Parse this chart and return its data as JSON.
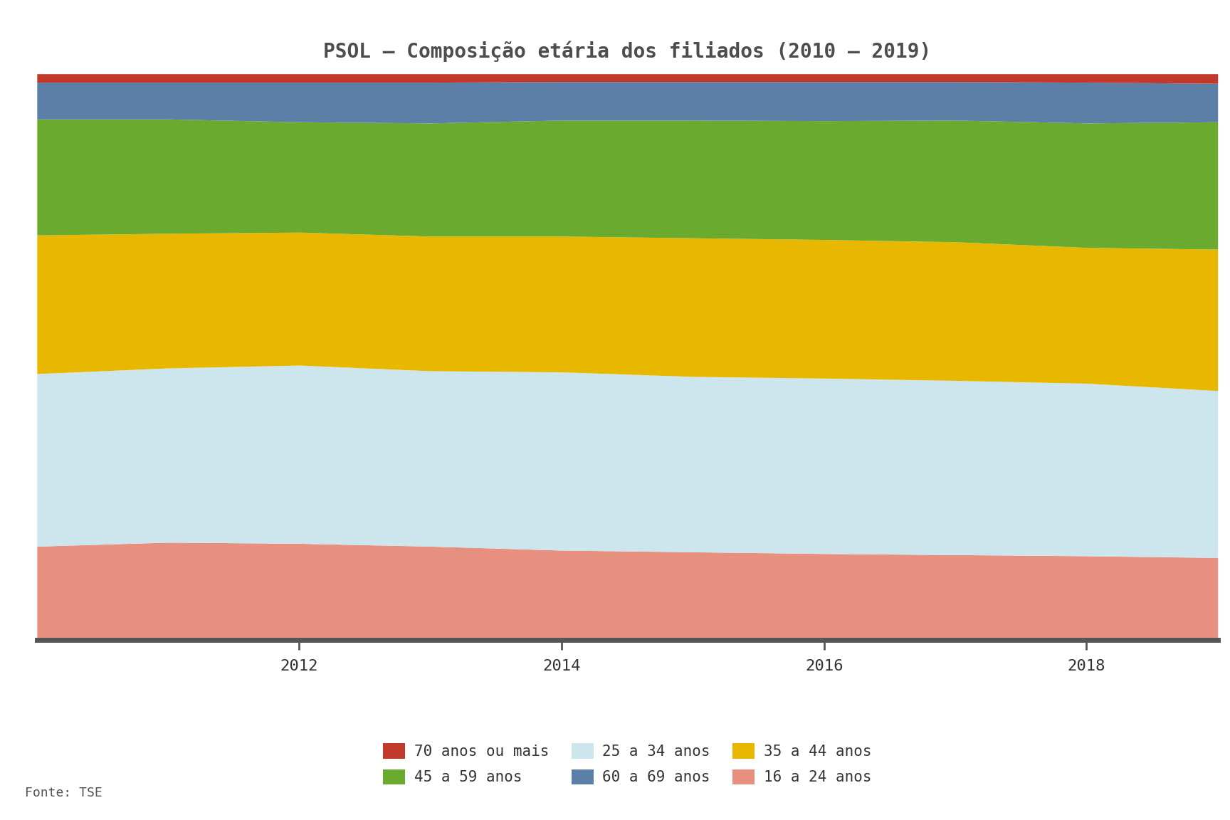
{
  "title": "PSOL – Composição etária dos filiados (2010 – 2019)",
  "fonte": "Fonte: TSE",
  "years": [
    2010,
    2011,
    2012,
    2013,
    2014,
    2015,
    2016,
    2017,
    2018,
    2019
  ],
  "series": {
    "16 a 24 anos": [
      16.5,
      17.2,
      17.0,
      16.5,
      15.8,
      15.5,
      15.2,
      15.0,
      14.8,
      14.5
    ],
    "25 a 34 anos": [
      30.5,
      30.8,
      31.5,
      31.0,
      31.5,
      31.0,
      31.0,
      30.8,
      30.5,
      29.5
    ],
    "35 a 44 anos": [
      24.5,
      23.8,
      23.5,
      23.8,
      24.0,
      24.5,
      24.5,
      24.5,
      24.0,
      25.0
    ],
    "45 a 59 anos": [
      20.5,
      20.2,
      19.5,
      20.0,
      20.5,
      20.8,
      21.0,
      21.5,
      22.0,
      22.5
    ],
    "60 a 69 anos": [
      6.5,
      6.5,
      7.0,
      7.2,
      6.8,
      6.8,
      6.9,
      6.8,
      7.2,
      6.8
    ],
    "70 anos ou mais": [
      1.5,
      1.5,
      1.5,
      1.5,
      1.4,
      1.4,
      1.4,
      1.4,
      1.5,
      1.7
    ]
  },
  "colors": {
    "70 anos ou mais": "#c0392b",
    "60 a 69 anos": "#5b7fa6",
    "45 a 59 anos": "#6aaa2e",
    "35 a 44 anos": "#e8b800",
    "25 a 34 anos": "#cde5ec",
    "16 a 24 anos": "#e89080"
  },
  "stack_order": [
    "16 a 24 anos",
    "25 a 34 anos",
    "35 a 44 anos",
    "45 a 59 anos",
    "60 a 69 anos",
    "70 anos ou mais"
  ],
  "legend_row1": [
    "70 anos ou mais",
    "45 a 59 anos",
    "25 a 34 anos"
  ],
  "legend_row2": [
    "60 a 69 anos",
    "35 a 44 anos",
    "16 a 24 anos"
  ],
  "background_color": "#ffffff",
  "plot_bg_color": "#ffffff",
  "title_color": "#4d4d4d",
  "tick_label_color": "#333333",
  "fonte_color": "#555555",
  "title_fontsize": 20,
  "tick_fontsize": 16,
  "legend_fontsize": 15,
  "fonte_fontsize": 13,
  "spine_color": "#555555",
  "spine_linewidth": 5
}
